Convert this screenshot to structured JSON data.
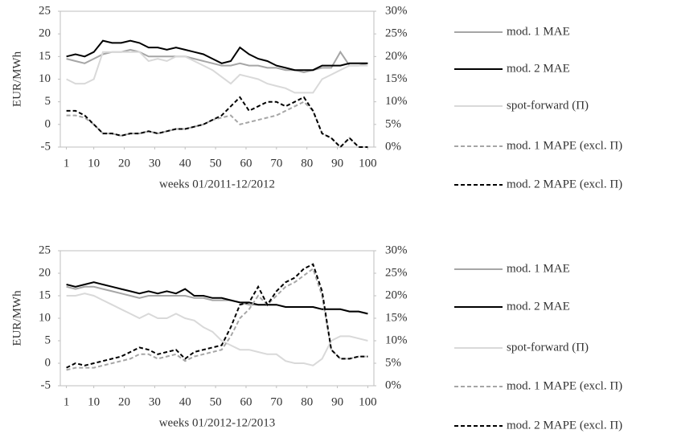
{
  "chart_data": [
    {
      "type": "line",
      "y_label": "EUR/MWh",
      "x_label": "weeks 01/2011-12/2012",
      "x": [
        1,
        4,
        7,
        10,
        13,
        16,
        19,
        22,
        25,
        28,
        31,
        34,
        37,
        40,
        43,
        46,
        49,
        52,
        55,
        58,
        61,
        64,
        67,
        70,
        73,
        76,
        79,
        82,
        85,
        88,
        91,
        94,
        97,
        100
      ],
      "xlim": [
        -1,
        102
      ],
      "xticks": [
        1,
        10,
        20,
        30,
        40,
        50,
        60,
        70,
        80,
        90,
        100
      ],
      "ylim": [
        -5,
        25
      ],
      "yticks": [
        -5,
        0,
        5,
        10,
        15,
        20,
        25
      ],
      "y2lim": [
        0,
        30
      ],
      "y2ticks": [
        {
          "value": 0,
          "label": "0%"
        },
        {
          "value": 5,
          "label": "5%"
        },
        {
          "value": 10,
          "label": "10%"
        },
        {
          "value": 15,
          "label": "15%"
        },
        {
          "value": 20,
          "label": "20%"
        },
        {
          "value": 25,
          "label": "25%"
        },
        {
          "value": 30,
          "label": "30%"
        }
      ],
      "series": [
        {
          "name": "mod. 1 MAE",
          "color": "#a6a6a6",
          "style": "solid",
          "values": [
            14.5,
            14,
            13.5,
            14.5,
            15.5,
            16,
            16,
            16.5,
            16,
            15,
            15,
            15,
            15,
            15,
            14.5,
            14,
            13.5,
            13,
            13,
            13.5,
            13,
            13,
            12.5,
            12.5,
            12,
            12,
            11.5,
            12,
            12.5,
            12.5,
            16,
            13,
            13,
            13.5
          ]
        },
        {
          "name": "mod. 2 MAE",
          "color": "#000000",
          "style": "solid",
          "values": [
            15,
            15.5,
            15,
            16,
            18.5,
            18,
            18,
            18.5,
            18,
            17,
            17,
            16.5,
            17,
            16.5,
            16,
            15.5,
            14.5,
            13.5,
            14,
            17,
            15.5,
            14.5,
            14,
            13,
            12.5,
            12,
            12,
            12,
            13,
            13,
            13,
            13.5,
            13.5,
            13.5
          ]
        },
        {
          "name": "spot-forward (Π)",
          "color": "#d9d9d9",
          "style": "solid",
          "values": [
            10,
            9,
            9,
            10,
            16,
            16,
            16,
            16,
            16,
            14,
            14.5,
            14,
            15,
            15,
            14,
            13,
            12,
            10.5,
            9,
            11,
            10.5,
            10,
            9,
            8.5,
            8,
            7,
            7,
            7,
            10,
            11,
            12,
            13,
            13,
            13
          ]
        },
        {
          "name": "mod. 1 MAPE (excl. Π)",
          "color": "#a6a6a6",
          "style": "dashed",
          "axis": "y2",
          "values": [
            7,
            7,
            6.5,
            5,
            3,
            3,
            2.5,
            3,
            3,
            3.5,
            3,
            3.5,
            4,
            4,
            4.5,
            5,
            6,
            6.5,
            7,
            5,
            5.5,
            6,
            6.5,
            7,
            8,
            9,
            10,
            8,
            3,
            2,
            0,
            2,
            0,
            0
          ]
        },
        {
          "name": "mod. 2 MAPE (excl. Π)",
          "color": "#000000",
          "style": "dashed",
          "axis": "y2",
          "values": [
            8,
            8,
            7,
            5,
            3,
            3,
            2.5,
            3,
            3,
            3.5,
            3,
            3.5,
            4,
            4,
            4.5,
            5,
            6,
            7,
            9,
            11,
            8,
            9,
            10,
            10,
            9,
            10,
            11,
            8,
            3,
            2,
            0,
            2,
            0,
            0
          ]
        }
      ]
    },
    {
      "type": "line",
      "y_label": "EUR/MWh",
      "x_label": "weeks 01/2012-12/2013",
      "x": [
        1,
        4,
        7,
        10,
        13,
        16,
        19,
        22,
        25,
        28,
        31,
        34,
        37,
        40,
        43,
        46,
        49,
        52,
        55,
        58,
        61,
        64,
        67,
        70,
        73,
        76,
        79,
        82,
        85,
        88,
        91,
        94,
        97,
        100
      ],
      "xlim": [
        -1,
        102
      ],
      "xticks": [
        1,
        10,
        20,
        30,
        40,
        50,
        60,
        70,
        80,
        90,
        100
      ],
      "ylim": [
        -5,
        25
      ],
      "yticks": [
        -5,
        0,
        5,
        10,
        15,
        20,
        25
      ],
      "y2lim": [
        0,
        30
      ],
      "y2ticks": [
        {
          "value": 0,
          "label": "0%"
        },
        {
          "value": 5,
          "label": "5%"
        },
        {
          "value": 10,
          "label": "10%"
        },
        {
          "value": 15,
          "label": "15%"
        },
        {
          "value": 20,
          "label": "20%"
        },
        {
          "value": 25,
          "label": "25%"
        },
        {
          "value": 30,
          "label": "30%"
        }
      ],
      "series": [
        {
          "name": "mod. 1 MAE",
          "color": "#a6a6a6",
          "style": "solid",
          "values": [
            17,
            16.5,
            17,
            17,
            16.5,
            16,
            15.5,
            15,
            14.5,
            15,
            15,
            15,
            15,
            15,
            14.5,
            14.5,
            14,
            14,
            14,
            13.5,
            13,
            13,
            13,
            13,
            12.5,
            12.5,
            12.5,
            12.5,
            12,
            12,
            12,
            11.5,
            11.5,
            11
          ]
        },
        {
          "name": "mod. 2 MAE",
          "color": "#000000",
          "style": "solid",
          "values": [
            17.5,
            17,
            17.5,
            18,
            17.5,
            17,
            16.5,
            16,
            15.5,
            16,
            15.5,
            16,
            15.5,
            16.5,
            15,
            15,
            14.5,
            14.5,
            14,
            13.5,
            13.5,
            13,
            13,
            13,
            12.5,
            12.5,
            12.5,
            12.5,
            12,
            12,
            12,
            11.5,
            11.5,
            11
          ]
        },
        {
          "name": "spot-forward (Π)",
          "color": "#d9d9d9",
          "style": "solid",
          "values": [
            15,
            15,
            15.5,
            15,
            14,
            13,
            12,
            11,
            10,
            11,
            10,
            10,
            11,
            10,
            9.5,
            8,
            7,
            5,
            4,
            3,
            3,
            2.5,
            2,
            2,
            0.5,
            0,
            0,
            -0.5,
            1,
            5,
            6,
            6,
            5.5,
            5
          ]
        },
        {
          "name": "mod. 1 MAPE (excl. Π)",
          "color": "#a6a6a6",
          "style": "dashed",
          "axis": "y2",
          "values": [
            3.5,
            4,
            4,
            4,
            4.5,
            5,
            5.5,
            6,
            7,
            7,
            6,
            6.5,
            7,
            5.5,
            6.5,
            7,
            7.5,
            8,
            11,
            15,
            17,
            20,
            18,
            20,
            22,
            23,
            24.5,
            26,
            20,
            8,
            6,
            6,
            6.5,
            6.5
          ]
        },
        {
          "name": "mod. 2 MAPE (excl. Π)",
          "color": "#000000",
          "style": "dashed",
          "axis": "y2",
          "values": [
            4,
            5,
            4.5,
            5,
            5.5,
            6,
            6.5,
            7.5,
            8.5,
            8,
            7,
            7.5,
            8,
            6,
            7.5,
            8,
            8.5,
            9,
            13,
            18,
            18.5,
            22,
            18,
            21,
            23,
            24,
            26,
            27,
            21,
            8,
            6,
            6,
            6.5,
            6.5
          ]
        }
      ]
    }
  ]
}
